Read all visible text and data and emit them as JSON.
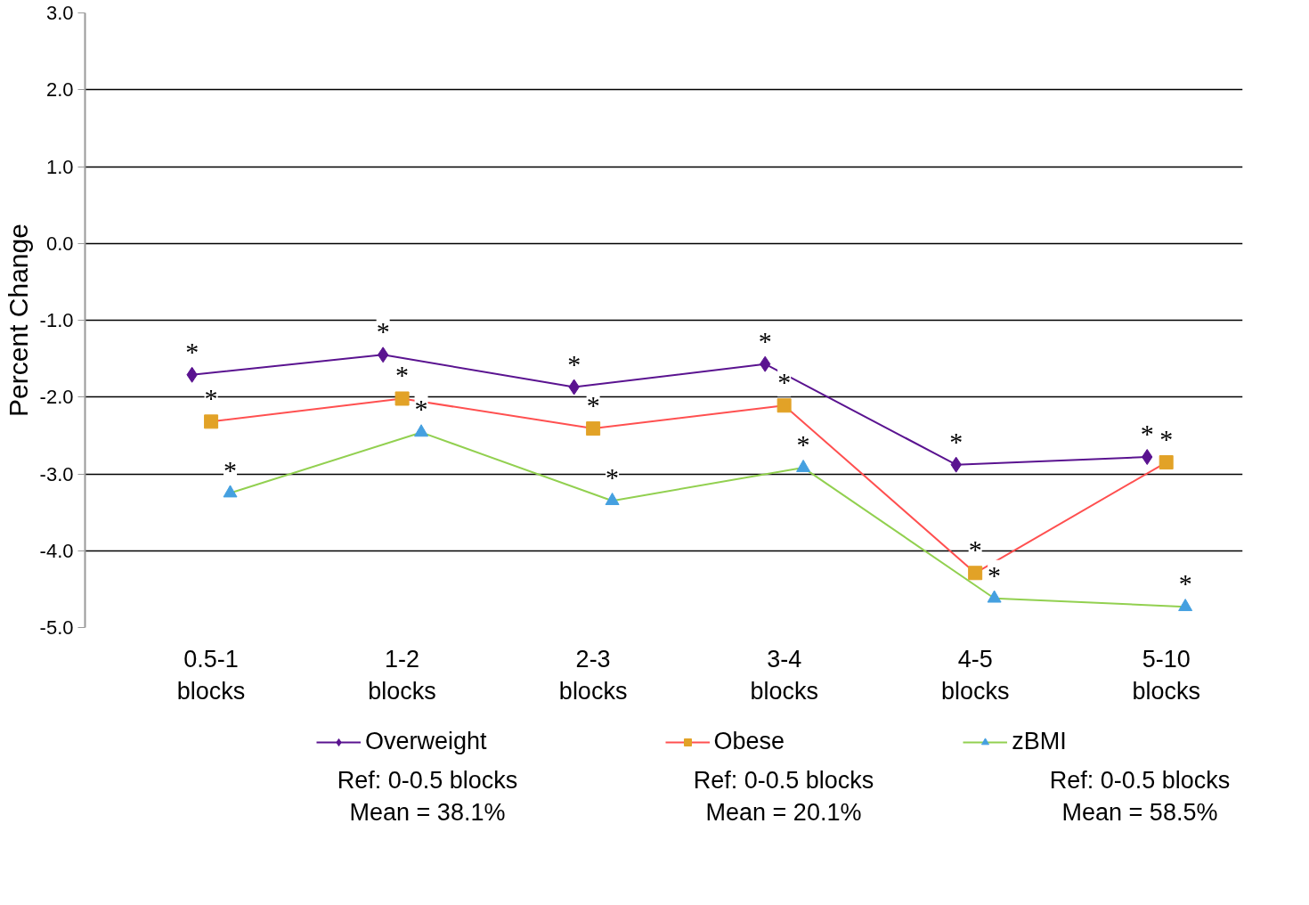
{
  "chart_data": {
    "type": "line",
    "ylabel": "Percent Change",
    "categories": [
      "0.5-1 blocks",
      "1-2 blocks",
      "2-3 blocks",
      "3-4 blocks",
      "4-5 blocks",
      "5-10 blocks"
    ],
    "series": [
      {
        "name": "Overweight",
        "color": "#5a1390",
        "colors": [
          "#5a1390",
          "#5a1390",
          "#5a1390",
          "#5a1390",
          "#5a1390",
          "#5a1390"
        ],
        "marker": "diamond",
        "values": [
          -1.71,
          -1.45,
          -1.87,
          -1.57,
          -2.88,
          -2.78
        ],
        "value_labels": [
          "*",
          "*",
          "*",
          "*",
          "*",
          "*"
        ]
      },
      {
        "name": "Obese",
        "color": "#ff5050",
        "colors": [
          "#e2a227",
          "#e2a227",
          "#e2a227",
          "#e2a227",
          "#e2a227",
          "#e2a227"
        ],
        "marker": "square",
        "values": [
          -2.32,
          -2.02,
          -2.41,
          -2.11,
          -4.29,
          -2.85
        ],
        "value_labels": [
          "*",
          "*",
          "*",
          "*",
          "*",
          "*"
        ]
      },
      {
        "name": "zBMI",
        "color": "#92d050",
        "colors": [
          "#45a0e0",
          "#45a0e0",
          "#45a0e0",
          "#45a0e0",
          "#45a0e0",
          "#45a0e0"
        ],
        "marker": "triangle",
        "values": [
          -3.25,
          -2.46,
          -3.35,
          -2.92,
          -4.62,
          -4.73
        ],
        "value_labels": [
          "*",
          "*",
          "*",
          "*",
          "*",
          "*"
        ]
      }
    ],
    "ylim": [
      -5,
      3
    ],
    "yticks": [
      {
        "value": -5,
        "label": "-5.0"
      },
      {
        "value": -4,
        "label": "-4.0"
      },
      {
        "value": -3,
        "label": "-3.0"
      },
      {
        "value": -2,
        "label": "-2.0"
      },
      {
        "value": -1,
        "label": "-1.0"
      },
      {
        "value": 0,
        "label": "0.0"
      },
      {
        "value": 1,
        "label": "1.0"
      },
      {
        "value": 2,
        "label": "2.0"
      },
      {
        "value": 3,
        "label": "3.0"
      }
    ],
    "grid": "y",
    "legend": "bottom",
    "line_style": "solid",
    "annotations": [
      "Ref: 0-0.5 blocks\nMean  = 38.1%",
      "Ref: 0-0.5 blocks\nMean  = 20.1%",
      "Ref: 0-0.5 blocks\nMean  = 58.5%"
    ]
  }
}
